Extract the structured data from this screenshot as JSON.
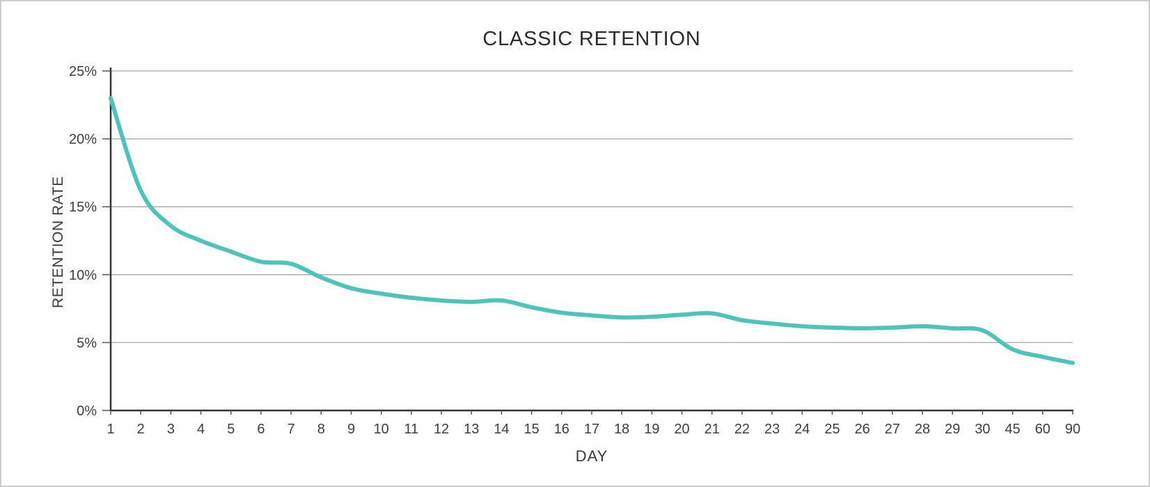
{
  "window": {
    "background": "#ffffff",
    "border_color": "#cdcdcd"
  },
  "chart_data": {
    "type": "line",
    "title": "CLASSIC RETENTION",
    "xlabel": "DAY",
    "ylabel": "RETENTION RATE",
    "categories": [
      "1",
      "2",
      "3",
      "4",
      "5",
      "6",
      "7",
      "8",
      "9",
      "10",
      "11",
      "12",
      "13",
      "14",
      "15",
      "16",
      "17",
      "18",
      "19",
      "20",
      "21",
      "22",
      "23",
      "24",
      "25",
      "26",
      "27",
      "28",
      "29",
      "30",
      "45",
      "60",
      "90"
    ],
    "series": [
      {
        "name": "classic-retention",
        "values": [
          23.0,
          16.2,
          13.6,
          12.5,
          11.7,
          10.95,
          10.8,
          9.8,
          9.0,
          8.6,
          8.3,
          8.1,
          8.0,
          8.1,
          7.6,
          7.2,
          7.0,
          6.85,
          6.9,
          7.05,
          7.15,
          6.65,
          6.4,
          6.2,
          6.1,
          6.05,
          6.1,
          6.2,
          6.05,
          5.9,
          4.5,
          3.95,
          3.5
        ]
      }
    ],
    "ylim": [
      0,
      25
    ],
    "ytick_values": [
      0,
      5,
      10,
      15,
      20,
      25
    ],
    "ytick_labels": [
      "0%",
      "5%",
      "10%",
      "15%",
      "20%",
      "25%"
    ],
    "grid": "horizontal",
    "legend": "none",
    "colors": {
      "line": "#4ec3ba",
      "grid": "#a6a6a6",
      "axis": "#333333",
      "tick": "#555555",
      "text": "#3e3e3e"
    }
  }
}
